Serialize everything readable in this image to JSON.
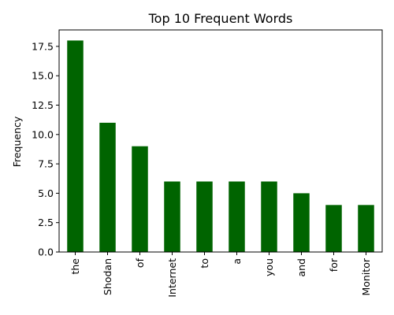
{
  "chart_data": {
    "type": "bar",
    "title": "Top 10 Frequent Words",
    "xlabel": "",
    "ylabel": "Frequency",
    "categories": [
      "the",
      "Shodan",
      "of",
      "Internet",
      "to",
      "a",
      "you",
      "and",
      "for",
      "Monitor"
    ],
    "values": [
      18,
      11,
      9,
      6,
      6,
      6,
      6,
      5,
      4,
      4
    ],
    "ylim": [
      0,
      18.9
    ],
    "yticks": [
      "0.0",
      "2.5",
      "5.0",
      "7.5",
      "10.0",
      "12.5",
      "15.0",
      "17.5"
    ],
    "ytick_values": [
      0,
      2.5,
      5,
      7.5,
      10,
      12.5,
      15,
      17.5
    ],
    "bar_color": "#006400",
    "grid": false,
    "legend": "none"
  }
}
